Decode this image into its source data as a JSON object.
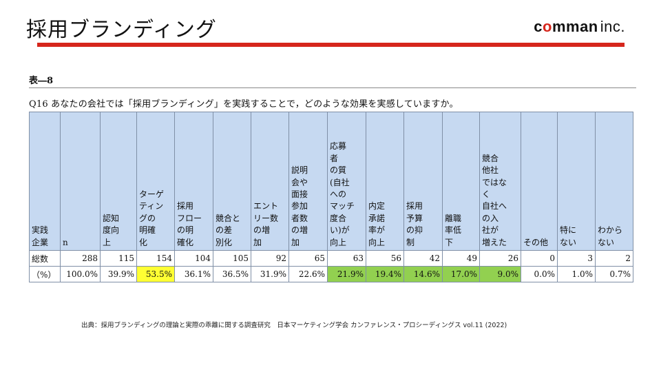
{
  "header": {
    "title": "採用ブランディング",
    "logo_part1": "c",
    "logo_o": "o",
    "logo_part2": "mman",
    "logo_inc": "inc.",
    "accent_color": "#d6261c"
  },
  "table_label": "表―8",
  "question": "Q16 あなたの会社では「採用ブランディング」を実践することで，どのような効果を実感していますか。",
  "table": {
    "header_bg": "#c6d9f1",
    "highlight_yellow": "#ffff33",
    "highlight_green": "#92d050",
    "columns": [
      "実践\n企業",
      "n",
      "認知\n度向\n上",
      "ターゲ\nティン\nグの\n明確\n化",
      "採用\nフロー\nの明\n確化",
      "競合と\nの差\n別化",
      "エント\nリー数\nの増\n加",
      "説明\n会や\n面接\n参加\n者数\nの増\n加",
      "応募\n者\nの質\n(自社\nへの\nマッチ\n度合\nい)が\n向上",
      "内定\n承諾\n率が\n向上",
      "採用\n予算\nの抑\n制",
      "離職\n率低\n下",
      "競合\n他社\nではな\nく\n自社へ\nの入\n社が\n増えた",
      "その他",
      "特に\nない",
      "わから\nない"
    ],
    "rows": [
      {
        "label": "総数",
        "cells": [
          "288",
          "115",
          "154",
          "104",
          "105",
          "92",
          "65",
          "63",
          "56",
          "42",
          "49",
          "26",
          "0",
          "3",
          "2"
        ]
      },
      {
        "label": "（%）",
        "cells": [
          "100.0%",
          "39.9%",
          "53.5%",
          "36.1%",
          "36.5%",
          "31.9%",
          "22.6%",
          "21.9%",
          "19.4%",
          "14.6%",
          "17.0%",
          "9.0%",
          "0.0%",
          "1.0%",
          "0.7%"
        ]
      }
    ]
  },
  "source": "出典：採用ブランディングの理論と実際の乖離に関する調査研究　日本マーケティング学会 カンファレンス・プロシーディングス vol.11 (2022)"
}
